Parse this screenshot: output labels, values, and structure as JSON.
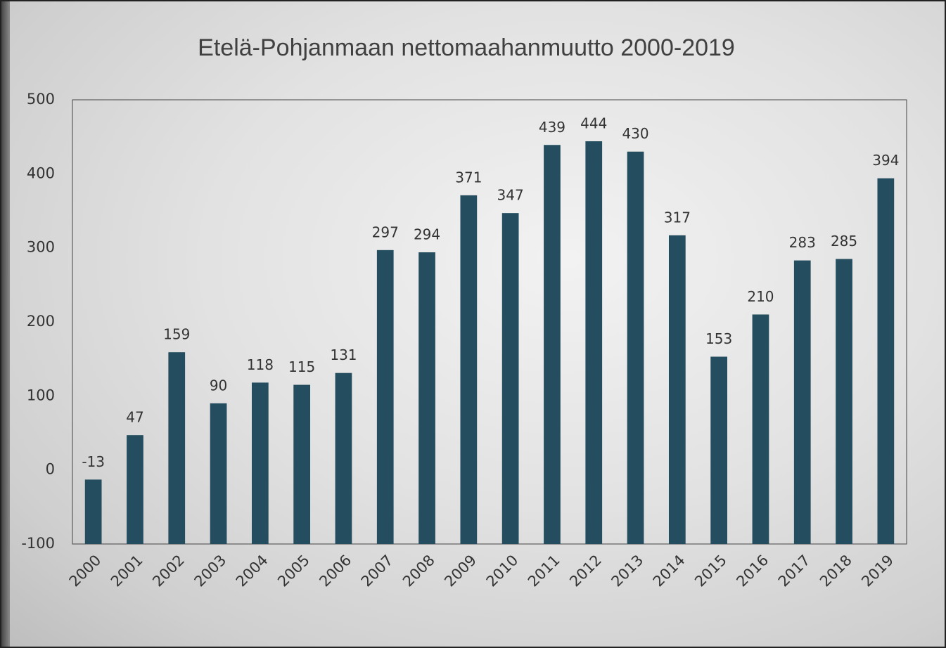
{
  "chart_data": {
    "type": "bar",
    "title": "Etelä-Pohjanmaan nettomaahanmuutto 2000-2019",
    "categories": [
      "2000",
      "2001",
      "2002",
      "2003",
      "2004",
      "2005",
      "2006",
      "2007",
      "2008",
      "2009",
      "2010",
      "2011",
      "2012",
      "2013",
      "2014",
      "2015",
      "2016",
      "2017",
      "2018",
      "2019"
    ],
    "values": [
      -13,
      47,
      159,
      90,
      118,
      115,
      131,
      297,
      294,
      371,
      347,
      439,
      444,
      430,
      317,
      153,
      210,
      283,
      285,
      394
    ],
    "color": "#244e5f",
    "ylim": [
      -100,
      500
    ],
    "yticks": [
      -100,
      0,
      100,
      200,
      300,
      400,
      500
    ],
    "grid": false
  }
}
